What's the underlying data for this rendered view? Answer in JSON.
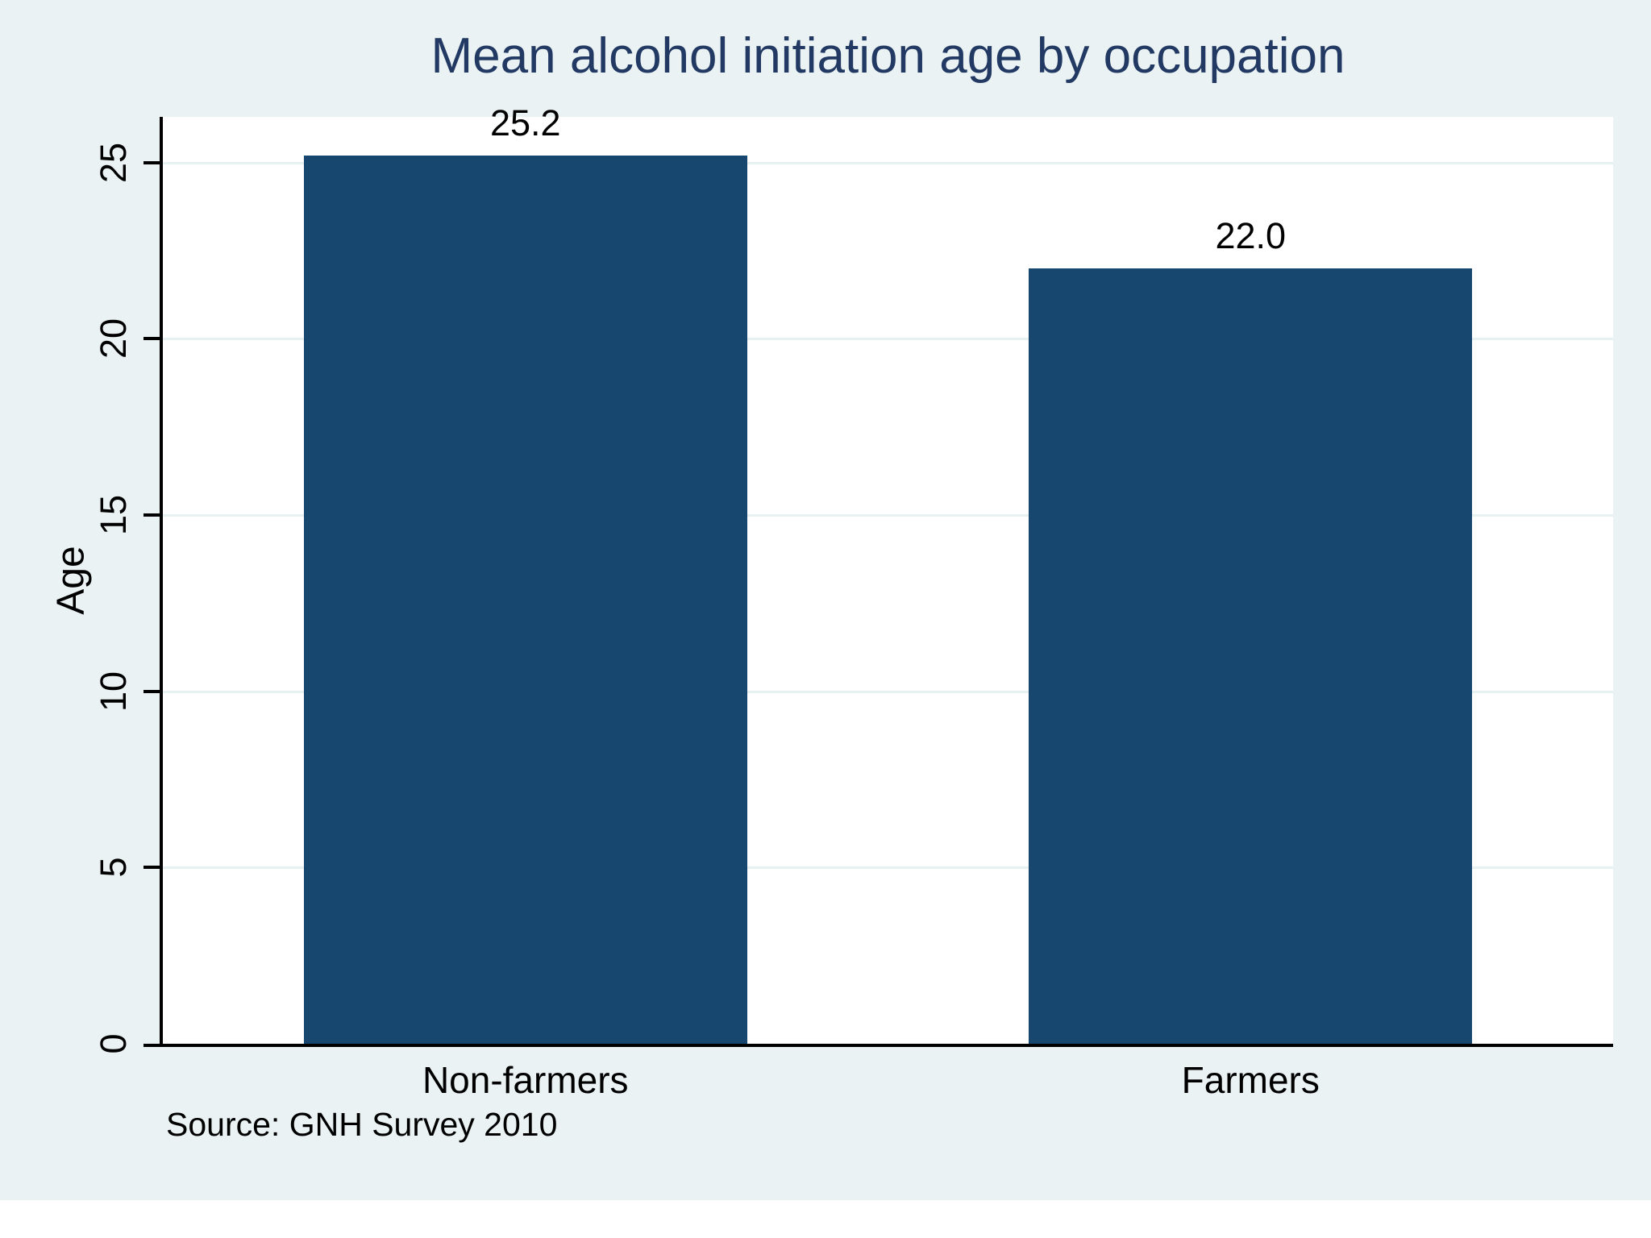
{
  "title": "Mean alcohol initiation age by occupation",
  "note": "Source: GNH Survey 2010",
  "colors": {
    "background": "#EAF2F3",
    "plot_background": "#FFFFFF",
    "bar": "#17476F",
    "title_text": "#223A63",
    "grid": "#E8F1F1",
    "axis": "#000000",
    "label_text": "#000000"
  },
  "chart_data": {
    "type": "bar",
    "title": "Mean alcohol initiation age by occupation",
    "categories": [
      "Non-farmers",
      "Farmers"
    ],
    "values": [
      25.2,
      22.0
    ],
    "value_labels": [
      "25.2",
      "22.0"
    ],
    "xlabel": "",
    "ylabel": "Age",
    "ylim": [
      0,
      26.3
    ],
    "yticks": [
      0,
      5,
      10,
      15,
      20,
      25
    ],
    "grid": true,
    "legend": "none",
    "note": "Source: GNH Survey 2010"
  }
}
